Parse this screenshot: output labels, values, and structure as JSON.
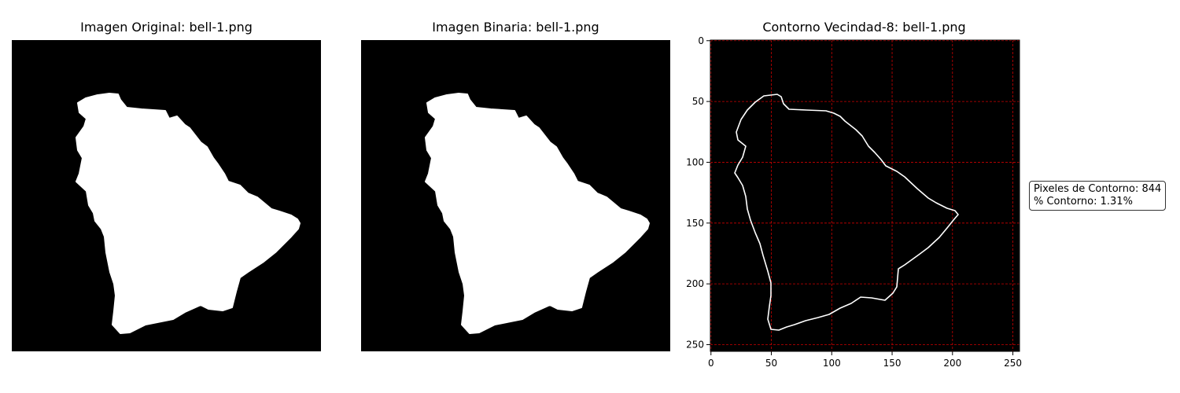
{
  "panels": {
    "original": {
      "title": "Imagen Original: bell-1.png"
    },
    "binary": {
      "title": "Imagen Binaria: bell-1.png"
    },
    "contour": {
      "title": "Contorno Vecindad-8: bell-1.png"
    }
  },
  "axes": {
    "x_ticks": [
      "0",
      "50",
      "100",
      "150",
      "200",
      "250"
    ],
    "y_ticks": [
      "0",
      "50",
      "100",
      "150",
      "200",
      "250"
    ],
    "grid": true,
    "grid_color": "#cc0000"
  },
  "stats": {
    "pixels_label": "Pixeles de Contorno: 844",
    "percent_label": "% Contorno: 1.31%"
  },
  "colors": {
    "background": "#000000",
    "shape": "#ffffff"
  }
}
